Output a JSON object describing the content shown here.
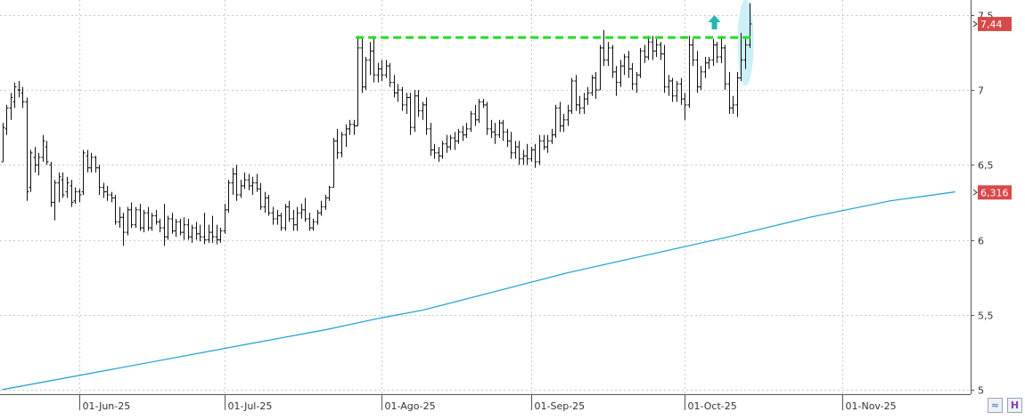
{
  "chart_data": {
    "type": "ohlc",
    "title": "",
    "xlabel": "",
    "ylabel": "",
    "ylim": [
      4.97,
      7.6
    ],
    "y_ticks": [
      "5",
      "5,5",
      "6",
      "6,5",
      "7",
      "7,5"
    ],
    "y_tick_values": [
      5,
      5.5,
      6,
      6.5,
      7,
      7.5
    ],
    "x_tick_labels": [
      "01-Jun-25",
      "01-Jul-25",
      "01-Ago-25",
      "01-Sep-25",
      "01-Oct-25",
      "01-Nov-25"
    ],
    "x_tick_bar_index": [
      19,
      55,
      94,
      131,
      169,
      208
    ],
    "grid": true,
    "bars": [
      [
        6.52,
        6.78,
        6.52,
        6.75
      ],
      [
        6.74,
        6.9,
        6.7,
        6.88
      ],
      [
        6.88,
        6.98,
        6.8,
        6.95
      ],
      [
        6.92,
        7.05,
        6.88,
        7.02
      ],
      [
        7.0,
        7.06,
        6.95,
        7.0
      ],
      [
        6.98,
        7.02,
        6.88,
        6.92
      ],
      [
        6.92,
        6.95,
        6.26,
        6.32
      ],
      [
        6.35,
        6.6,
        6.32,
        6.58
      ],
      [
        6.55,
        6.62,
        6.45,
        6.5
      ],
      [
        6.5,
        6.58,
        6.43,
        6.55
      ],
      [
        6.55,
        6.7,
        6.52,
        6.66
      ],
      [
        6.62,
        6.66,
        6.5,
        6.52
      ],
      [
        6.5,
        6.52,
        6.22,
        6.25
      ],
      [
        6.25,
        6.4,
        6.13,
        6.38
      ],
      [
        6.38,
        6.45,
        6.25,
        6.42
      ],
      [
        6.4,
        6.45,
        6.28,
        6.3
      ],
      [
        6.32,
        6.42,
        6.28,
        6.38
      ],
      [
        6.36,
        6.4,
        6.22,
        6.25
      ],
      [
        6.26,
        6.35,
        6.24,
        6.32
      ],
      [
        6.32,
        6.34,
        6.25,
        6.3
      ],
      [
        6.32,
        6.6,
        6.3,
        6.58
      ],
      [
        6.56,
        6.6,
        6.45,
        6.48
      ],
      [
        6.48,
        6.58,
        6.45,
        6.55
      ],
      [
        6.55,
        6.56,
        6.45,
        6.48
      ],
      [
        6.48,
        6.5,
        6.3,
        6.35
      ],
      [
        6.35,
        6.38,
        6.28,
        6.32
      ],
      [
        6.32,
        6.36,
        6.26,
        6.3
      ],
      [
        6.3,
        6.32,
        6.25,
        6.28
      ],
      [
        6.28,
        6.3,
        6.1,
        6.12
      ],
      [
        6.12,
        6.22,
        6.08,
        6.15
      ],
      [
        6.15,
        6.18,
        5.96,
        6.05
      ],
      [
        6.05,
        6.22,
        6.03,
        6.2
      ],
      [
        6.2,
        6.25,
        6.08,
        6.1
      ],
      [
        6.1,
        6.22,
        6.08,
        6.2
      ],
      [
        6.2,
        6.24,
        6.06,
        6.08
      ],
      [
        6.08,
        6.2,
        6.05,
        6.18
      ],
      [
        6.18,
        6.22,
        6.06,
        6.08
      ],
      [
        6.08,
        6.18,
        6.06,
        6.16
      ],
      [
        6.16,
        6.2,
        6.1,
        6.12
      ],
      [
        6.12,
        6.14,
        6.05,
        6.08
      ],
      [
        6.08,
        6.24,
        5.96,
        6.02
      ],
      [
        6.02,
        6.16,
        6.0,
        6.14
      ],
      [
        6.14,
        6.18,
        6.04,
        6.06
      ],
      [
        6.06,
        6.14,
        6.02,
        6.12
      ],
      [
        6.12,
        6.14,
        6.03,
        6.05
      ],
      [
        6.05,
        6.15,
        6.0,
        6.1
      ],
      [
        6.1,
        6.14,
        6.0,
        6.02
      ],
      [
        6.02,
        6.1,
        5.98,
        6.08
      ],
      [
        6.08,
        6.12,
        6.0,
        6.04
      ],
      [
        6.04,
        6.1,
        5.99,
        6.02
      ],
      [
        6.02,
        6.18,
        5.97,
        6.0
      ],
      [
        6.0,
        6.1,
        5.98,
        6.05
      ],
      [
        6.05,
        6.16,
        5.98,
        6.02
      ],
      [
        6.02,
        6.1,
        5.97,
        6.0
      ],
      [
        6.0,
        6.08,
        5.98,
        6.06
      ],
      [
        6.06,
        6.24,
        6.04,
        6.2
      ],
      [
        6.2,
        6.4,
        6.18,
        6.38
      ],
      [
        6.38,
        6.48,
        6.3,
        6.44
      ],
      [
        6.44,
        6.5,
        6.26,
        6.3
      ],
      [
        6.3,
        6.4,
        6.28,
        6.36
      ],
      [
        6.36,
        6.45,
        6.34,
        6.4
      ],
      [
        6.4,
        6.44,
        6.33,
        6.36
      ],
      [
        6.36,
        6.42,
        6.3,
        6.38
      ],
      [
        6.38,
        6.44,
        6.32,
        6.34
      ],
      [
        6.34,
        6.38,
        6.2,
        6.22
      ],
      [
        6.22,
        6.32,
        6.18,
        6.28
      ],
      [
        6.28,
        6.3,
        6.16,
        6.18
      ],
      [
        6.18,
        6.22,
        6.1,
        6.14
      ],
      [
        6.14,
        6.2,
        6.1,
        6.16
      ],
      [
        6.16,
        6.18,
        6.06,
        6.08
      ],
      [
        6.08,
        6.24,
        6.06,
        6.22
      ],
      [
        6.22,
        6.26,
        6.12,
        6.14
      ],
      [
        6.14,
        6.2,
        6.06,
        6.1
      ],
      [
        6.1,
        6.22,
        6.06,
        6.18
      ],
      [
        6.18,
        6.24,
        6.14,
        6.2
      ],
      [
        6.2,
        6.28,
        6.12,
        6.14
      ],
      [
        6.14,
        6.18,
        6.06,
        6.08
      ],
      [
        6.08,
        6.14,
        6.06,
        6.12
      ],
      [
        6.12,
        6.2,
        6.1,
        6.18
      ],
      [
        6.18,
        6.26,
        6.16,
        6.22
      ],
      [
        6.22,
        6.3,
        6.2,
        6.28
      ],
      [
        6.28,
        6.36,
        6.26,
        6.35
      ],
      [
        6.35,
        6.68,
        6.35,
        6.66
      ],
      [
        6.66,
        6.74,
        6.54,
        6.58
      ],
      [
        6.58,
        6.72,
        6.55,
        6.7
      ],
      [
        6.7,
        6.77,
        6.62,
        6.74
      ],
      [
        6.74,
        6.8,
        6.7,
        6.77
      ],
      [
        6.77,
        6.8,
        6.7,
        6.76
      ],
      [
        6.76,
        7.36,
        6.76,
        7.28
      ],
      [
        7.28,
        7.34,
        6.98,
        7.02
      ],
      [
        7.02,
        7.22,
        7.0,
        7.2
      ],
      [
        7.2,
        7.32,
        7.1,
        7.26
      ],
      [
        7.26,
        7.36,
        7.05,
        7.1
      ],
      [
        7.1,
        7.18,
        7.05,
        7.14
      ],
      [
        7.14,
        7.2,
        7.06,
        7.1
      ],
      [
        7.1,
        7.2,
        7.08,
        7.16
      ],
      [
        7.16,
        7.18,
        7.02,
        7.05
      ],
      [
        7.05,
        7.1,
        6.95,
        6.98
      ],
      [
        6.98,
        7.04,
        6.92,
        7.0
      ],
      [
        7.0,
        7.02,
        6.86,
        6.9
      ],
      [
        6.9,
        6.98,
        6.84,
        6.95
      ],
      [
        6.95,
        6.98,
        6.7,
        6.75
      ],
      [
        6.75,
        7.0,
        6.72,
        6.96
      ],
      [
        6.96,
        7.0,
        6.82,
        6.86
      ],
      [
        6.86,
        6.92,
        6.8,
        6.9
      ],
      [
        6.9,
        6.95,
        6.7,
        6.74
      ],
      [
        6.74,
        6.78,
        6.56,
        6.6
      ],
      [
        6.6,
        6.64,
        6.54,
        6.58
      ],
      [
        6.58,
        6.62,
        6.52,
        6.56
      ],
      [
        6.56,
        6.66,
        6.54,
        6.64
      ],
      [
        6.64,
        6.7,
        6.58,
        6.62
      ],
      [
        6.62,
        6.7,
        6.6,
        6.68
      ],
      [
        6.68,
        6.72,
        6.6,
        6.66
      ],
      [
        6.66,
        6.74,
        6.64,
        6.72
      ],
      [
        6.72,
        6.76,
        6.66,
        6.7
      ],
      [
        6.7,
        6.78,
        6.68,
        6.74
      ],
      [
        6.74,
        6.86,
        6.72,
        6.84
      ],
      [
        6.84,
        6.9,
        6.76,
        6.8
      ],
      [
        6.8,
        6.94,
        6.78,
        6.92
      ],
      [
        6.92,
        6.94,
        6.88,
        6.9
      ],
      [
        6.9,
        6.92,
        6.7,
        6.74
      ],
      [
        6.74,
        6.8,
        6.68,
        6.72
      ],
      [
        6.72,
        6.78,
        6.64,
        6.7
      ],
      [
        6.7,
        6.8,
        6.68,
        6.78
      ],
      [
        6.78,
        6.8,
        6.66,
        6.72
      ],
      [
        6.72,
        6.74,
        6.62,
        6.66
      ],
      [
        6.66,
        6.72,
        6.54,
        6.58
      ],
      [
        6.58,
        6.66,
        6.54,
        6.62
      ],
      [
        6.62,
        6.66,
        6.5,
        6.54
      ],
      [
        6.54,
        6.6,
        6.5,
        6.56
      ],
      [
        6.56,
        6.64,
        6.5,
        6.54
      ],
      [
        6.54,
        6.62,
        6.52,
        6.6
      ],
      [
        6.6,
        6.64,
        6.48,
        6.52
      ],
      [
        6.52,
        6.7,
        6.5,
        6.66
      ],
      [
        6.66,
        6.7,
        6.6,
        6.62
      ],
      [
        6.62,
        6.7,
        6.58,
        6.66
      ],
      [
        6.66,
        6.74,
        6.64,
        6.7
      ],
      [
        6.7,
        6.9,
        6.68,
        6.88
      ],
      [
        6.88,
        6.92,
        6.72,
        6.76
      ],
      [
        6.76,
        6.84,
        6.72,
        6.8
      ],
      [
        6.8,
        6.9,
        6.76,
        6.86
      ],
      [
        6.86,
        7.08,
        6.84,
        7.06
      ],
      [
        7.06,
        7.1,
        6.86,
        6.9
      ],
      [
        6.9,
        6.96,
        6.84,
        6.88
      ],
      [
        6.88,
        6.98,
        6.84,
        6.94
      ],
      [
        6.94,
        7.02,
        6.9,
        6.98
      ],
      [
        6.98,
        7.1,
        6.96,
        7.08
      ],
      [
        7.08,
        7.12,
        6.94,
        7.0
      ],
      [
        7.0,
        7.3,
        7.0,
        7.28
      ],
      [
        7.28,
        7.4,
        7.16,
        7.2
      ],
      [
        7.2,
        7.32,
        7.16,
        7.28
      ],
      [
        7.28,
        7.3,
        7.08,
        7.12
      ],
      [
        7.12,
        7.16,
        6.96,
        7.05
      ],
      [
        7.05,
        7.2,
        7.02,
        7.16
      ],
      [
        7.16,
        7.24,
        7.1,
        7.22
      ],
      [
        7.22,
        7.26,
        7.08,
        7.14
      ],
      [
        7.14,
        7.18,
        7.0,
        7.04
      ],
      [
        7.04,
        7.12,
        6.98,
        7.1
      ],
      [
        7.1,
        7.28,
        7.08,
        7.26
      ],
      [
        7.26,
        7.3,
        7.18,
        7.22
      ],
      [
        7.22,
        7.36,
        7.2,
        7.32
      ],
      [
        7.32,
        7.36,
        7.2,
        7.26
      ],
      [
        7.26,
        7.34,
        7.22,
        7.3
      ],
      [
        7.3,
        7.32,
        7.2,
        7.24
      ],
      [
        7.24,
        7.3,
        6.98,
        7.02
      ],
      [
        7.02,
        7.1,
        6.96,
        7.06
      ],
      [
        7.06,
        7.08,
        6.92,
        6.96
      ],
      [
        6.96,
        7.06,
        6.92,
        7.04
      ],
      [
        7.04,
        7.08,
        6.9,
        6.94
      ],
      [
        6.94,
        6.98,
        6.8,
        6.9
      ],
      [
        6.9,
        7.36,
        6.88,
        7.3
      ],
      [
        7.3,
        7.34,
        7.16,
        7.2
      ],
      [
        7.2,
        7.26,
        6.98,
        7.02
      ],
      [
        7.02,
        7.16,
        7.0,
        7.12
      ],
      [
        7.12,
        7.22,
        7.08,
        7.18
      ],
      [
        7.18,
        7.22,
        7.14,
        7.2
      ],
      [
        7.2,
        7.34,
        7.16,
        7.3
      ],
      [
        7.3,
        7.32,
        7.18,
        7.22
      ],
      [
        7.22,
        7.36,
        7.18,
        7.28
      ],
      [
        7.28,
        7.3,
        7.0,
        7.04
      ],
      [
        7.04,
        7.12,
        6.84,
        6.88
      ],
      [
        6.88,
        6.96,
        6.84,
        6.9
      ],
      [
        6.9,
        7.12,
        6.82,
        7.08
      ],
      [
        7.08,
        7.38,
        7.06,
        7.2
      ],
      [
        7.2,
        7.34,
        7.14,
        7.3
      ],
      [
        7.3,
        7.58,
        7.28,
        7.44
      ]
    ],
    "series": [
      {
        "kind": "moving-average",
        "color": "#1a9ed6",
        "points": [
          [
            0,
            5.0
          ],
          [
            20,
            5.1
          ],
          [
            40,
            5.2
          ],
          [
            60,
            5.3
          ],
          [
            80,
            5.4
          ],
          [
            94,
            5.48
          ],
          [
            104,
            5.53
          ],
          [
            120,
            5.64
          ],
          [
            140,
            5.78
          ],
          [
            160,
            5.9
          ],
          [
            180,
            6.02
          ],
          [
            200,
            6.15
          ],
          [
            220,
            6.26
          ],
          [
            236,
            6.32
          ]
        ]
      }
    ],
    "resistance_level": 7.35,
    "resistance_color": "#22dd22",
    "last_price": "7,44",
    "last_price_value": 7.44,
    "ma_value": "6,316",
    "ma_value_num": 6.316,
    "label_color": "#d84a4a",
    "arrow_color": "#25b7b0",
    "highlight_color": "#cceff8",
    "buttons": [
      "≈",
      "H"
    ]
  }
}
